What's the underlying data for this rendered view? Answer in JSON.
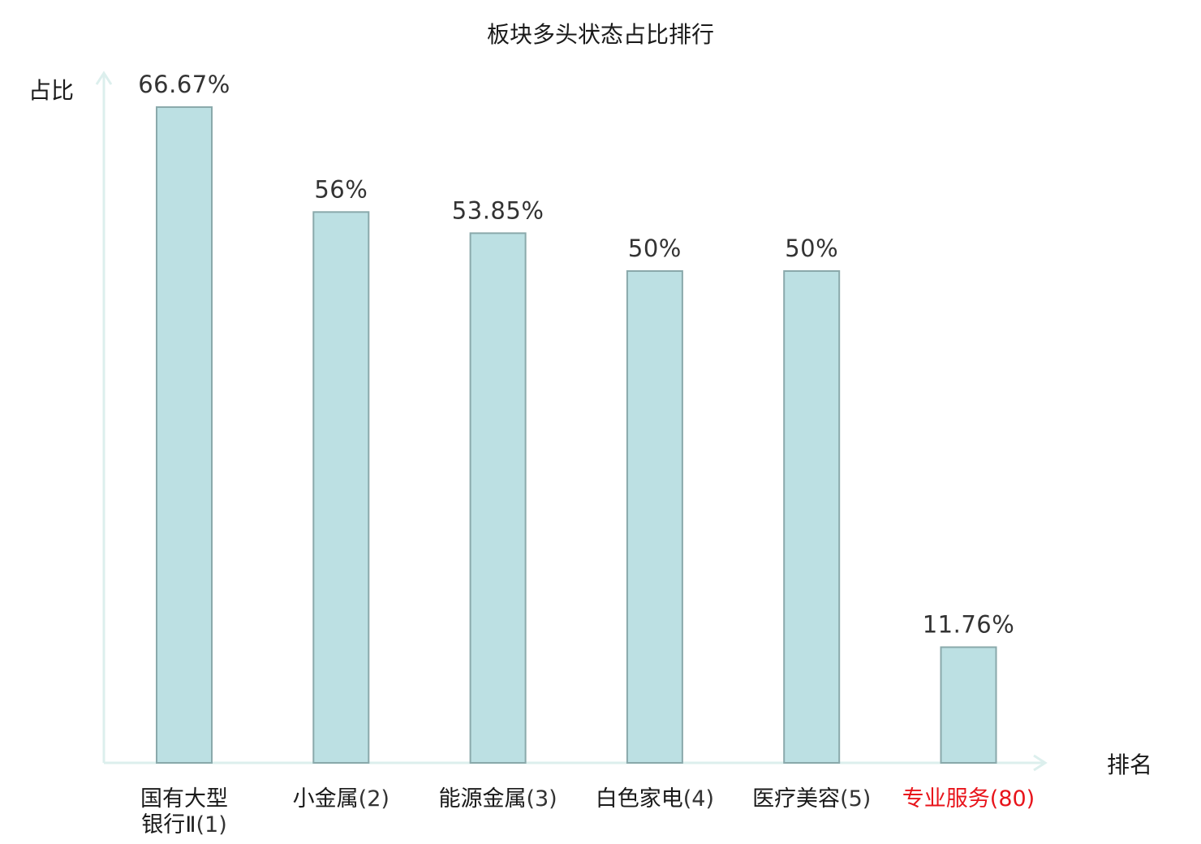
{
  "chart_data": {
    "type": "bar",
    "title": "板块多头状态占比排行",
    "xlabel": "排名",
    "ylabel": "占比",
    "ylim": [
      0,
      70
    ],
    "grid": false,
    "legend": "none",
    "categories": [
      {
        "name_lines": [
          "国有大型",
          "银行Ⅱ"
        ],
        "rank": "(1)",
        "highlight": false
      },
      {
        "name_lines": [
          "小金属"
        ],
        "rank": "(2)",
        "highlight": false
      },
      {
        "name_lines": [
          "能源金属"
        ],
        "rank": "(3)",
        "highlight": false
      },
      {
        "name_lines": [
          "白色家电"
        ],
        "rank": "(4)",
        "highlight": false
      },
      {
        "name_lines": [
          "医疗美容"
        ],
        "rank": "(5)",
        "highlight": false
      },
      {
        "name_lines": [
          "专业服务"
        ],
        "rank": "(80)",
        "highlight": true
      }
    ],
    "values": [
      66.67,
      56,
      53.85,
      50,
      50,
      11.76
    ],
    "value_labels": [
      "66.67%",
      "56%",
      "53.85%",
      "50%",
      "50%",
      "11.76%"
    ],
    "colors": {
      "bar_fill": "#bce0e3",
      "bar_stroke": "#8aa9ab",
      "axis": "#dcefed",
      "highlight": "#e8141b"
    }
  }
}
